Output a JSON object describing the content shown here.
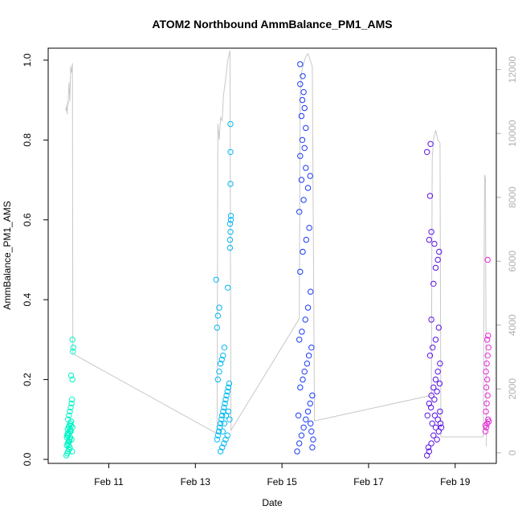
{
  "chart_data": {
    "type": "scatter",
    "title": "ATOM2 Northbound AmmBalance_PM1_AMS",
    "xlabel": "Date",
    "ylabel": "AmmBalance_PM1_AMS",
    "x_ticks": [
      "Feb 11",
      "Feb 13",
      "Feb 15",
      "Feb 17",
      "Feb 19"
    ],
    "x_tick_days": [
      11,
      13,
      15,
      17,
      19
    ],
    "xlim_days": [
      9.6,
      19.95
    ],
    "ylim": [
      -0.01,
      1.03
    ],
    "y_ticks": [
      "0.0",
      "0.2",
      "0.4",
      "0.6",
      "0.8",
      "1.0"
    ],
    "y_tick_values": [
      0.0,
      0.2,
      0.4,
      0.6,
      0.8,
      1.0
    ],
    "y2_ticks": [
      "0",
      "2000",
      "4000",
      "6000",
      "8000",
      "10000",
      "12000"
    ],
    "y2_tick_values": [
      0,
      2000,
      4000,
      6000,
      8000,
      10000,
      12000
    ],
    "y2lim": [
      -330,
      12670
    ],
    "line_color": "#c8c8c8",
    "secondary_line": [
      [
        10.0,
        10800
      ],
      [
        10.02,
        10700
      ],
      [
        10.03,
        10900
      ],
      [
        10.04,
        10600
      ],
      [
        10.05,
        11000
      ],
      [
        10.06,
        10900
      ],
      [
        10.08,
        11600
      ],
      [
        10.1,
        11000
      ],
      [
        10.12,
        12100
      ],
      [
        10.14,
        11900
      ],
      [
        10.16,
        12200
      ],
      [
        10.17,
        3100
      ],
      [
        13.5,
        600
      ],
      [
        13.52,
        10300
      ],
      [
        13.55,
        9800
      ],
      [
        13.58,
        10500
      ],
      [
        13.62,
        10400
      ],
      [
        13.65,
        11200
      ],
      [
        13.7,
        11700
      ],
      [
        13.75,
        12300
      ],
      [
        13.8,
        12600
      ],
      [
        13.82,
        700
      ],
      [
        15.4,
        4200
      ],
      [
        15.42,
        11200
      ],
      [
        15.45,
        11900
      ],
      [
        15.5,
        12200
      ],
      [
        15.55,
        12400
      ],
      [
        15.6,
        12500
      ],
      [
        15.65,
        12300
      ],
      [
        15.7,
        12100
      ],
      [
        15.75,
        1000
      ],
      [
        18.45,
        1800
      ],
      [
        18.47,
        9200
      ],
      [
        18.5,
        9800
      ],
      [
        18.55,
        10100
      ],
      [
        18.6,
        9800
      ],
      [
        18.65,
        9700
      ],
      [
        18.67,
        500
      ],
      [
        19.65,
        500
      ],
      [
        19.68,
        8700
      ],
      [
        19.7,
        8600
      ],
      [
        19.72,
        200
      ]
    ],
    "series": [
      {
        "color": "#00f5c6",
        "points": [
          [
            10.02,
            0.01
          ],
          [
            10.04,
            0.015
          ],
          [
            10.06,
            0.02
          ],
          [
            10.08,
            0.025
          ],
          [
            10.1,
            0.03
          ],
          [
            10.03,
            0.035
          ],
          [
            10.05,
            0.04
          ],
          [
            10.07,
            0.045
          ],
          [
            10.09,
            0.05
          ],
          [
            10.11,
            0.055
          ],
          [
            10.04,
            0.06
          ],
          [
            10.06,
            0.06
          ],
          [
            10.08,
            0.065
          ],
          [
            10.1,
            0.07
          ],
          [
            10.12,
            0.07
          ],
          [
            10.05,
            0.075
          ],
          [
            10.07,
            0.08
          ],
          [
            10.09,
            0.085
          ],
          [
            10.11,
            0.09
          ],
          [
            10.13,
            0.095
          ],
          [
            10.06,
            0.1
          ],
          [
            10.08,
            0.11
          ],
          [
            10.1,
            0.12
          ],
          [
            10.12,
            0.13
          ],
          [
            10.14,
            0.14
          ],
          [
            10.15,
            0.02
          ],
          [
            10.14,
            0.05
          ],
          [
            10.16,
            0.08
          ],
          [
            10.15,
            0.15
          ],
          [
            10.13,
            0.21
          ],
          [
            10.16,
            0.2
          ],
          [
            10.17,
            0.27
          ],
          [
            10.18,
            0.28
          ],
          [
            10.16,
            0.3
          ],
          [
            10.03,
            0.055
          ],
          [
            10.05,
            0.065
          ],
          [
            10.07,
            0.035
          ],
          [
            10.09,
            0.045
          ],
          [
            10.11,
            0.075
          ],
          [
            10.13,
            0.085
          ]
        ]
      },
      {
        "color": "#00b8f5",
        "points": [
          [
            13.5,
            0.05
          ],
          [
            13.52,
            0.06
          ],
          [
            13.54,
            0.07
          ],
          [
            13.56,
            0.08
          ],
          [
            13.58,
            0.09
          ],
          [
            13.6,
            0.1
          ],
          [
            13.62,
            0.11
          ],
          [
            13.64,
            0.12
          ],
          [
            13.66,
            0.13
          ],
          [
            13.68,
            0.14
          ],
          [
            13.7,
            0.15
          ],
          [
            13.72,
            0.16
          ],
          [
            13.74,
            0.17
          ],
          [
            13.76,
            0.18
          ],
          [
            13.78,
            0.19
          ],
          [
            13.52,
            0.2
          ],
          [
            13.55,
            0.22
          ],
          [
            13.58,
            0.24
          ],
          [
            13.61,
            0.25
          ],
          [
            13.64,
            0.26
          ],
          [
            13.67,
            0.28
          ],
          [
            13.5,
            0.33
          ],
          [
            13.52,
            0.36
          ],
          [
            13.55,
            0.38
          ],
          [
            13.48,
            0.45
          ],
          [
            13.58,
            0.02
          ],
          [
            13.62,
            0.03
          ],
          [
            13.66,
            0.04
          ],
          [
            13.7,
            0.05
          ],
          [
            13.74,
            0.06
          ],
          [
            13.75,
            0.43
          ],
          [
            13.8,
            0.53
          ],
          [
            13.8,
            0.55
          ],
          [
            13.81,
            0.57
          ],
          [
            13.8,
            0.59
          ],
          [
            13.82,
            0.6
          ],
          [
            13.82,
            0.61
          ],
          [
            13.81,
            0.69
          ],
          [
            13.81,
            0.77
          ],
          [
            13.81,
            0.84
          ],
          [
            13.63,
            0.07
          ],
          [
            13.67,
            0.09
          ],
          [
            13.71,
            0.11
          ],
          [
            13.76,
            0.12
          ],
          [
            13.79,
            0.1
          ]
        ]
      },
      {
        "color": "#1a3cf5",
        "points": [
          [
            15.35,
            0.02
          ],
          [
            15.4,
            0.04
          ],
          [
            15.45,
            0.06
          ],
          [
            15.5,
            0.08
          ],
          [
            15.55,
            0.1
          ],
          [
            15.6,
            0.12
          ],
          [
            15.65,
            0.14
          ],
          [
            15.7,
            0.16
          ],
          [
            15.42,
            0.18
          ],
          [
            15.48,
            0.2
          ],
          [
            15.52,
            0.22
          ],
          [
            15.58,
            0.24
          ],
          [
            15.62,
            0.26
          ],
          [
            15.68,
            0.28
          ],
          [
            15.4,
            0.3
          ],
          [
            15.46,
            0.32
          ],
          [
            15.54,
            0.35
          ],
          [
            15.6,
            0.38
          ],
          [
            15.66,
            0.42
          ],
          [
            15.42,
            0.47
          ],
          [
            15.48,
            0.52
          ],
          [
            15.56,
            0.55
          ],
          [
            15.63,
            0.58
          ],
          [
            15.4,
            0.62
          ],
          [
            15.5,
            0.65
          ],
          [
            15.6,
            0.68
          ],
          [
            15.45,
            0.7
          ],
          [
            15.55,
            0.73
          ],
          [
            15.65,
            0.71
          ],
          [
            15.42,
            0.76
          ],
          [
            15.52,
            0.78
          ],
          [
            15.47,
            0.8
          ],
          [
            15.55,
            0.83
          ],
          [
            15.45,
            0.86
          ],
          [
            15.52,
            0.88
          ],
          [
            15.47,
            0.9
          ],
          [
            15.42,
            0.94
          ],
          [
            15.48,
            0.96
          ],
          [
            15.42,
            0.99
          ],
          [
            15.5,
            0.92
          ],
          [
            15.7,
            0.03
          ],
          [
            15.72,
            0.05
          ],
          [
            15.68,
            0.07
          ],
          [
            15.66,
            0.09
          ],
          [
            15.38,
            0.11
          ]
        ]
      },
      {
        "color": "#5a12e8",
        "points": [
          [
            18.35,
            0.01
          ],
          [
            18.4,
            0.02
          ],
          [
            18.45,
            0.04
          ],
          [
            18.5,
            0.06
          ],
          [
            18.55,
            0.08
          ],
          [
            18.6,
            0.1
          ],
          [
            18.65,
            0.12
          ],
          [
            18.4,
            0.14
          ],
          [
            18.45,
            0.16
          ],
          [
            18.5,
            0.18
          ],
          [
            18.55,
            0.2
          ],
          [
            18.6,
            0.22
          ],
          [
            18.65,
            0.24
          ],
          [
            18.42,
            0.26
          ],
          [
            18.48,
            0.28
          ],
          [
            18.55,
            0.3
          ],
          [
            18.62,
            0.33
          ],
          [
            18.45,
            0.35
          ],
          [
            18.5,
            0.44
          ],
          [
            18.55,
            0.48
          ],
          [
            18.6,
            0.5
          ],
          [
            18.63,
            0.52
          ],
          [
            18.4,
            0.55
          ],
          [
            18.45,
            0.57
          ],
          [
            18.52,
            0.54
          ],
          [
            18.42,
            0.66
          ],
          [
            18.35,
            0.77
          ],
          [
            18.43,
            0.79
          ],
          [
            18.38,
            0.03
          ],
          [
            18.58,
            0.05
          ],
          [
            18.62,
            0.07
          ],
          [
            18.66,
            0.09
          ],
          [
            18.36,
            0.11
          ],
          [
            18.44,
            0.13
          ],
          [
            18.52,
            0.15
          ],
          [
            18.58,
            0.17
          ],
          [
            18.64,
            0.19
          ],
          [
            18.68,
            0.08
          ],
          [
            18.47,
            0.09
          ],
          [
            18.53,
            0.11
          ]
        ]
      },
      {
        "color": "#e82ad8",
        "points": [
          [
            19.7,
            0.07
          ],
          [
            19.72,
            0.08
          ],
          [
            19.74,
            0.09
          ],
          [
            19.76,
            0.1
          ],
          [
            19.71,
            0.12
          ],
          [
            19.73,
            0.14
          ],
          [
            19.75,
            0.16
          ],
          [
            19.72,
            0.18
          ],
          [
            19.74,
            0.2
          ],
          [
            19.71,
            0.22
          ],
          [
            19.73,
            0.24
          ],
          [
            19.75,
            0.26
          ],
          [
            19.77,
            0.28
          ],
          [
            19.74,
            0.3
          ],
          [
            19.76,
            0.31
          ],
          [
            19.75,
            0.5
          ],
          [
            19.7,
            0.085
          ],
          [
            19.78,
            0.095
          ]
        ]
      }
    ]
  }
}
